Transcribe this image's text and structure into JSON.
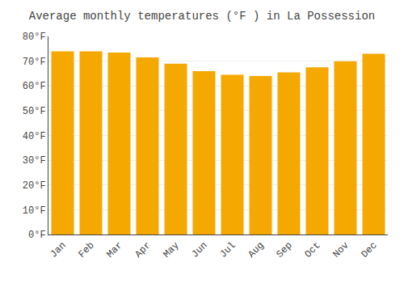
{
  "chart_data": {
    "type": "bar",
    "title": "Average monthly temperatures (°F ) in La Possession",
    "categories": [
      "Jan",
      "Feb",
      "Mar",
      "Apr",
      "May",
      "Jun",
      "Jul",
      "Aug",
      "Sep",
      "Oct",
      "Nov",
      "Dec"
    ],
    "values": [
      74,
      74,
      73.5,
      71.5,
      69,
      66,
      64.5,
      64,
      65.5,
      67.5,
      70,
      73
    ],
    "color": "#F5A800",
    "ylim": [
      0,
      80
    ],
    "yticks": [
      {
        "value": 0,
        "label": "0°F"
      },
      {
        "value": 10,
        "label": "10°F"
      },
      {
        "value": 20,
        "label": "20°F"
      },
      {
        "value": 30,
        "label": "30°F"
      },
      {
        "value": 40,
        "label": "40°F"
      },
      {
        "value": 50,
        "label": "50°F"
      },
      {
        "value": 60,
        "label": "60°F"
      },
      {
        "value": 70,
        "label": "70°F"
      },
      {
        "value": 80,
        "label": "80°F"
      }
    ],
    "grid": true
  }
}
